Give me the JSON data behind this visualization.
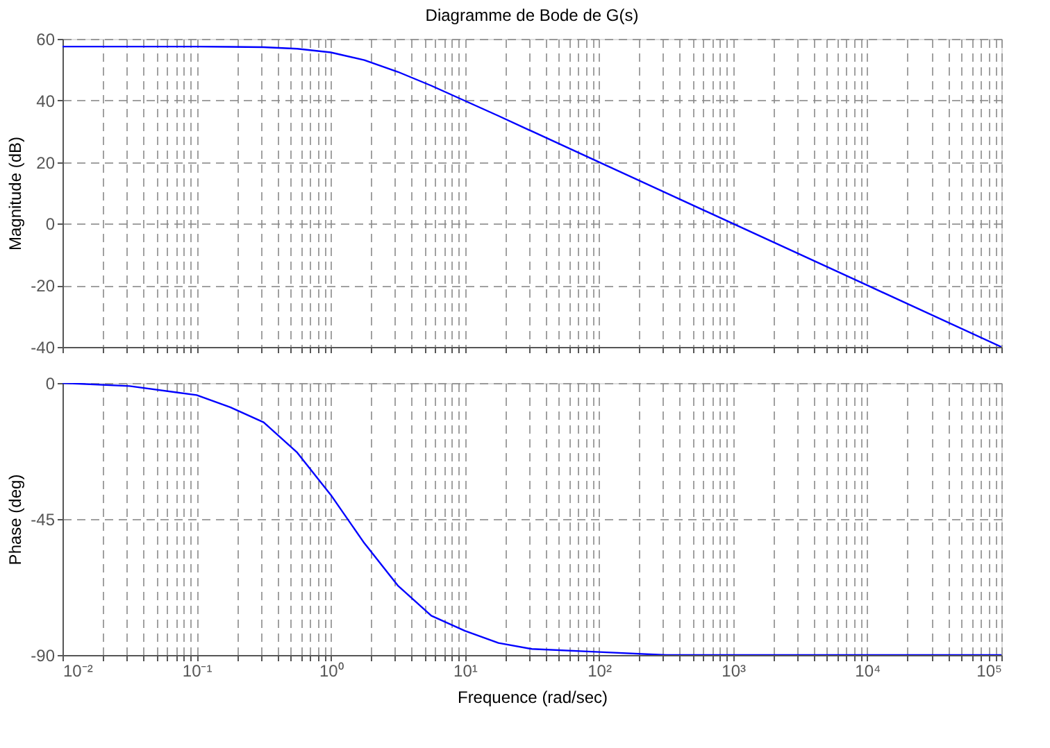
{
  "chart_data": [
    {
      "type": "line",
      "title": "Diagramme de Bode de G(s)",
      "ylabel": "Magnitude (dB)",
      "log": "x",
      "grid": true,
      "line_style": "solid",
      "tick_labels": "y",
      "x": [
        0.01,
        0.0316,
        0.1,
        0.178,
        0.316,
        0.562,
        1,
        1.78,
        3.16,
        5.62,
        10,
        17.8,
        31.6,
        100,
        1000,
        10000,
        100000
      ],
      "series": [
        {
          "color": "#0000ff",
          "values": [
            57.5,
            57.5,
            57.5,
            57.4,
            57.3,
            56.8,
            55.6,
            53.1,
            49.3,
            44.8,
            39.9,
            35.0,
            30.0,
            20,
            0,
            -20,
            -40
          ]
        }
      ],
      "xlim": [
        0.01,
        100000
      ],
      "ylim": [
        -40,
        60
      ],
      "yticks": [
        -40,
        -20,
        0,
        20,
        40,
        60
      ],
      "xticks": [
        {
          "value": 0.01,
          "label": null
        },
        {
          "value": 0.02,
          "label": null
        },
        {
          "value": 0.03,
          "label": null
        },
        {
          "value": 0.04,
          "label": null
        },
        {
          "value": 0.05,
          "label": null
        },
        {
          "value": 0.06,
          "label": null
        },
        {
          "value": 0.07,
          "label": null
        },
        {
          "value": 0.08,
          "label": null
        },
        {
          "value": 0.09,
          "label": null
        },
        {
          "value": 0.1,
          "label": null
        },
        {
          "value": 0.2,
          "label": null
        },
        {
          "value": 0.3,
          "label": null
        },
        {
          "value": 0.4,
          "label": null
        },
        {
          "value": 0.5,
          "label": null
        },
        {
          "value": 0.6,
          "label": null
        },
        {
          "value": 0.7,
          "label": null
        },
        {
          "value": 0.8,
          "label": null
        },
        {
          "value": 0.9,
          "label": null
        },
        {
          "value": 1,
          "label": null
        },
        {
          "value": 2,
          "label": null
        },
        {
          "value": 3,
          "label": null
        },
        {
          "value": 4,
          "label": null
        },
        {
          "value": 5,
          "label": null
        },
        {
          "value": 6,
          "label": null
        },
        {
          "value": 7,
          "label": null
        },
        {
          "value": 8,
          "label": null
        },
        {
          "value": 9,
          "label": null
        },
        {
          "value": 10,
          "label": null
        },
        {
          "value": 20,
          "label": null
        },
        {
          "value": 30,
          "label": null
        },
        {
          "value": 40,
          "label": null
        },
        {
          "value": 50,
          "label": null
        },
        {
          "value": 60,
          "label": null
        },
        {
          "value": 70,
          "label": null
        },
        {
          "value": 80,
          "label": null
        },
        {
          "value": 90,
          "label": null
        },
        {
          "value": 100,
          "label": null
        },
        {
          "value": 200,
          "label": null
        },
        {
          "value": 300,
          "label": null
        },
        {
          "value": 400,
          "label": null
        },
        {
          "value": 500,
          "label": null
        },
        {
          "value": 600,
          "label": null
        },
        {
          "value": 700,
          "label": null
        },
        {
          "value": 800,
          "label": null
        },
        {
          "value": 900,
          "label": null
        },
        {
          "value": 1000,
          "label": null
        },
        {
          "value": 2000,
          "label": null
        },
        {
          "value": 3000,
          "label": null
        },
        {
          "value": 4000,
          "label": null
        },
        {
          "value": 5000,
          "label": null
        },
        {
          "value": 6000,
          "label": null
        },
        {
          "value": 7000,
          "label": null
        },
        {
          "value": 8000,
          "label": null
        },
        {
          "value": 9000,
          "label": null
        },
        {
          "value": 10000,
          "label": null
        },
        {
          "value": 20000,
          "label": null
        },
        {
          "value": 30000,
          "label": null
        },
        {
          "value": 40000,
          "label": null
        },
        {
          "value": 50000,
          "label": null
        },
        {
          "value": 60000,
          "label": null
        },
        {
          "value": 70000,
          "label": null
        },
        {
          "value": 80000,
          "label": null
        },
        {
          "value": 90000,
          "label": null
        },
        {
          "value": 100000,
          "label": null
        }
      ]
    },
    {
      "type": "line",
      "xlabel": "Frequence  (rad/sec)",
      "ylabel": "Phase (deg)",
      "log": "x",
      "grid": true,
      "line_style": "solid",
      "x": [
        0.01,
        0.0316,
        0.1,
        0.178,
        0.316,
        0.562,
        1,
        1.78,
        3.16,
        5.62,
        10,
        17.8,
        31.6,
        100,
        316,
        1000,
        100000
      ],
      "series": [
        {
          "color": "#0000ff",
          "values": [
            0,
            -1,
            -4,
            -8,
            -13,
            -23,
            -37,
            -53,
            -67,
            -77,
            -82,
            -86,
            -88,
            -89,
            -90,
            -90,
            -90
          ]
        }
      ],
      "xlim": [
        0.01,
        100000
      ],
      "ylim": [
        -90,
        0
      ],
      "yticks": [
        -90,
        -45,
        0
      ],
      "xticks": [
        {
          "value": 0.01,
          "label": "10⁻²"
        },
        {
          "value": 0.02,
          "label": null
        },
        {
          "value": 0.03,
          "label": null
        },
        {
          "value": 0.04,
          "label": null
        },
        {
          "value": 0.05,
          "label": null
        },
        {
          "value": 0.06,
          "label": null
        },
        {
          "value": 0.07,
          "label": null
        },
        {
          "value": 0.08,
          "label": null
        },
        {
          "value": 0.09,
          "label": null
        },
        {
          "value": 0.1,
          "label": "10⁻¹"
        },
        {
          "value": 0.2,
          "label": null
        },
        {
          "value": 0.3,
          "label": null
        },
        {
          "value": 0.4,
          "label": null
        },
        {
          "value": 0.5,
          "label": null
        },
        {
          "value": 0.6,
          "label": null
        },
        {
          "value": 0.7,
          "label": null
        },
        {
          "value": 0.8,
          "label": null
        },
        {
          "value": 0.9,
          "label": null
        },
        {
          "value": 1,
          "label": "10⁰"
        },
        {
          "value": 2,
          "label": null
        },
        {
          "value": 3,
          "label": null
        },
        {
          "value": 4,
          "label": null
        },
        {
          "value": 5,
          "label": null
        },
        {
          "value": 6,
          "label": null
        },
        {
          "value": 7,
          "label": null
        },
        {
          "value": 8,
          "label": null
        },
        {
          "value": 9,
          "label": null
        },
        {
          "value": 10,
          "label": "10¹"
        },
        {
          "value": 20,
          "label": null
        },
        {
          "value": 30,
          "label": null
        },
        {
          "value": 40,
          "label": null
        },
        {
          "value": 50,
          "label": null
        },
        {
          "value": 60,
          "label": null
        },
        {
          "value": 70,
          "label": null
        },
        {
          "value": 80,
          "label": null
        },
        {
          "value": 90,
          "label": null
        },
        {
          "value": 100,
          "label": "10²"
        },
        {
          "value": 200,
          "label": null
        },
        {
          "value": 300,
          "label": null
        },
        {
          "value": 400,
          "label": null
        },
        {
          "value": 500,
          "label": null
        },
        {
          "value": 600,
          "label": null
        },
        {
          "value": 700,
          "label": null
        },
        {
          "value": 800,
          "label": null
        },
        {
          "value": 900,
          "label": null
        },
        {
          "value": 1000,
          "label": "10³"
        },
        {
          "value": 2000,
          "label": null
        },
        {
          "value": 3000,
          "label": null
        },
        {
          "value": 4000,
          "label": null
        },
        {
          "value": 5000,
          "label": null
        },
        {
          "value": 6000,
          "label": null
        },
        {
          "value": 7000,
          "label": null
        },
        {
          "value": 8000,
          "label": null
        },
        {
          "value": 9000,
          "label": null
        },
        {
          "value": 10000,
          "label": "10⁴"
        },
        {
          "value": 20000,
          "label": null
        },
        {
          "value": 30000,
          "label": null
        },
        {
          "value": 40000,
          "label": null
        },
        {
          "value": 50000,
          "label": null
        },
        {
          "value": 60000,
          "label": null
        },
        {
          "value": 70000,
          "label": null
        },
        {
          "value": 80000,
          "label": null
        },
        {
          "value": 90000,
          "label": null
        },
        {
          "value": 100000,
          "label": "10⁵"
        }
      ]
    }
  ]
}
